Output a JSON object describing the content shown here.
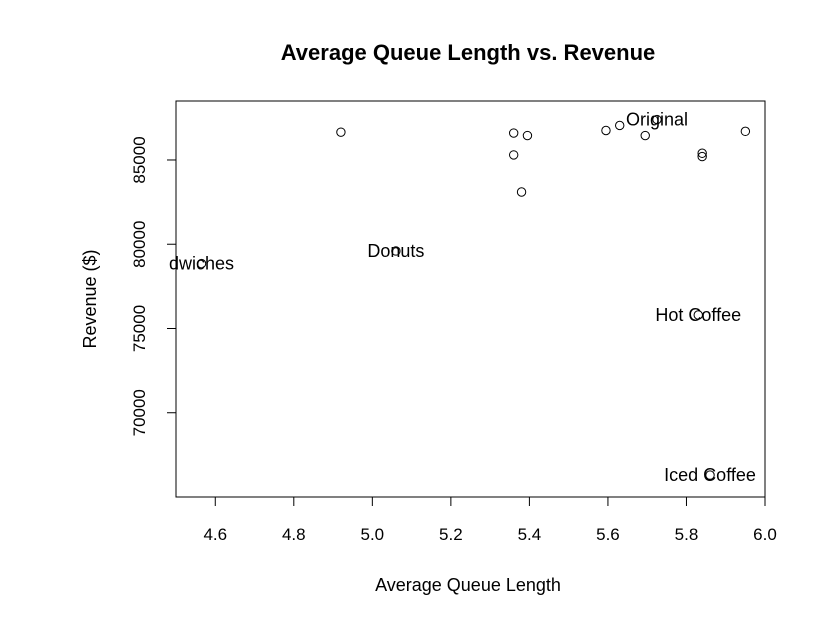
{
  "chart_data": {
    "type": "scatter",
    "title": "Average Queue Length vs. Revenue",
    "xlabel": "Average Queue Length",
    "ylabel": "Revenue ($)",
    "xlim": [
      4.5,
      6.0
    ],
    "ylim": [
      65000,
      88500
    ],
    "x_ticks": [
      4.6,
      4.8,
      5.0,
      5.2,
      5.4,
      5.6,
      5.8,
      6.0
    ],
    "x_tick_labels": [
      "4.6",
      "4.8",
      "5.0",
      "5.2",
      "5.4",
      "5.6",
      "5.8",
      "6.0"
    ],
    "y_ticks": [
      70000,
      75000,
      80000,
      85000
    ],
    "y_tick_labels": [
      "70000",
      "75000",
      "80000",
      "85000"
    ],
    "grid": false,
    "legend": "none",
    "points": [
      {
        "x": 4.92,
        "y": 86650,
        "label": ""
      },
      {
        "x": 5.36,
        "y": 86600,
        "label": ""
      },
      {
        "x": 5.395,
        "y": 86450,
        "label": ""
      },
      {
        "x": 5.36,
        "y": 85300,
        "label": ""
      },
      {
        "x": 5.38,
        "y": 83100,
        "label": ""
      },
      {
        "x": 5.595,
        "y": 86750,
        "label": ""
      },
      {
        "x": 5.63,
        "y": 87050,
        "label": ""
      },
      {
        "x": 5.695,
        "y": 86450,
        "label": ""
      },
      {
        "x": 5.725,
        "y": 87400,
        "label": "Original"
      },
      {
        "x": 5.84,
        "y": 85400,
        "label": ""
      },
      {
        "x": 5.84,
        "y": 85200,
        "label": ""
      },
      {
        "x": 5.95,
        "y": 86700,
        "label": ""
      },
      {
        "x": 4.565,
        "y": 78850,
        "label": "dwiches"
      },
      {
        "x": 5.06,
        "y": 79600,
        "label": "Donuts"
      },
      {
        "x": 5.83,
        "y": 75800,
        "label": "Hot Coffee"
      },
      {
        "x": 5.86,
        "y": 66300,
        "label": "Iced Coffee"
      }
    ]
  },
  "colors": {
    "background": "#ffffff",
    "axis": "#000000",
    "point_stroke": "#000000"
  }
}
